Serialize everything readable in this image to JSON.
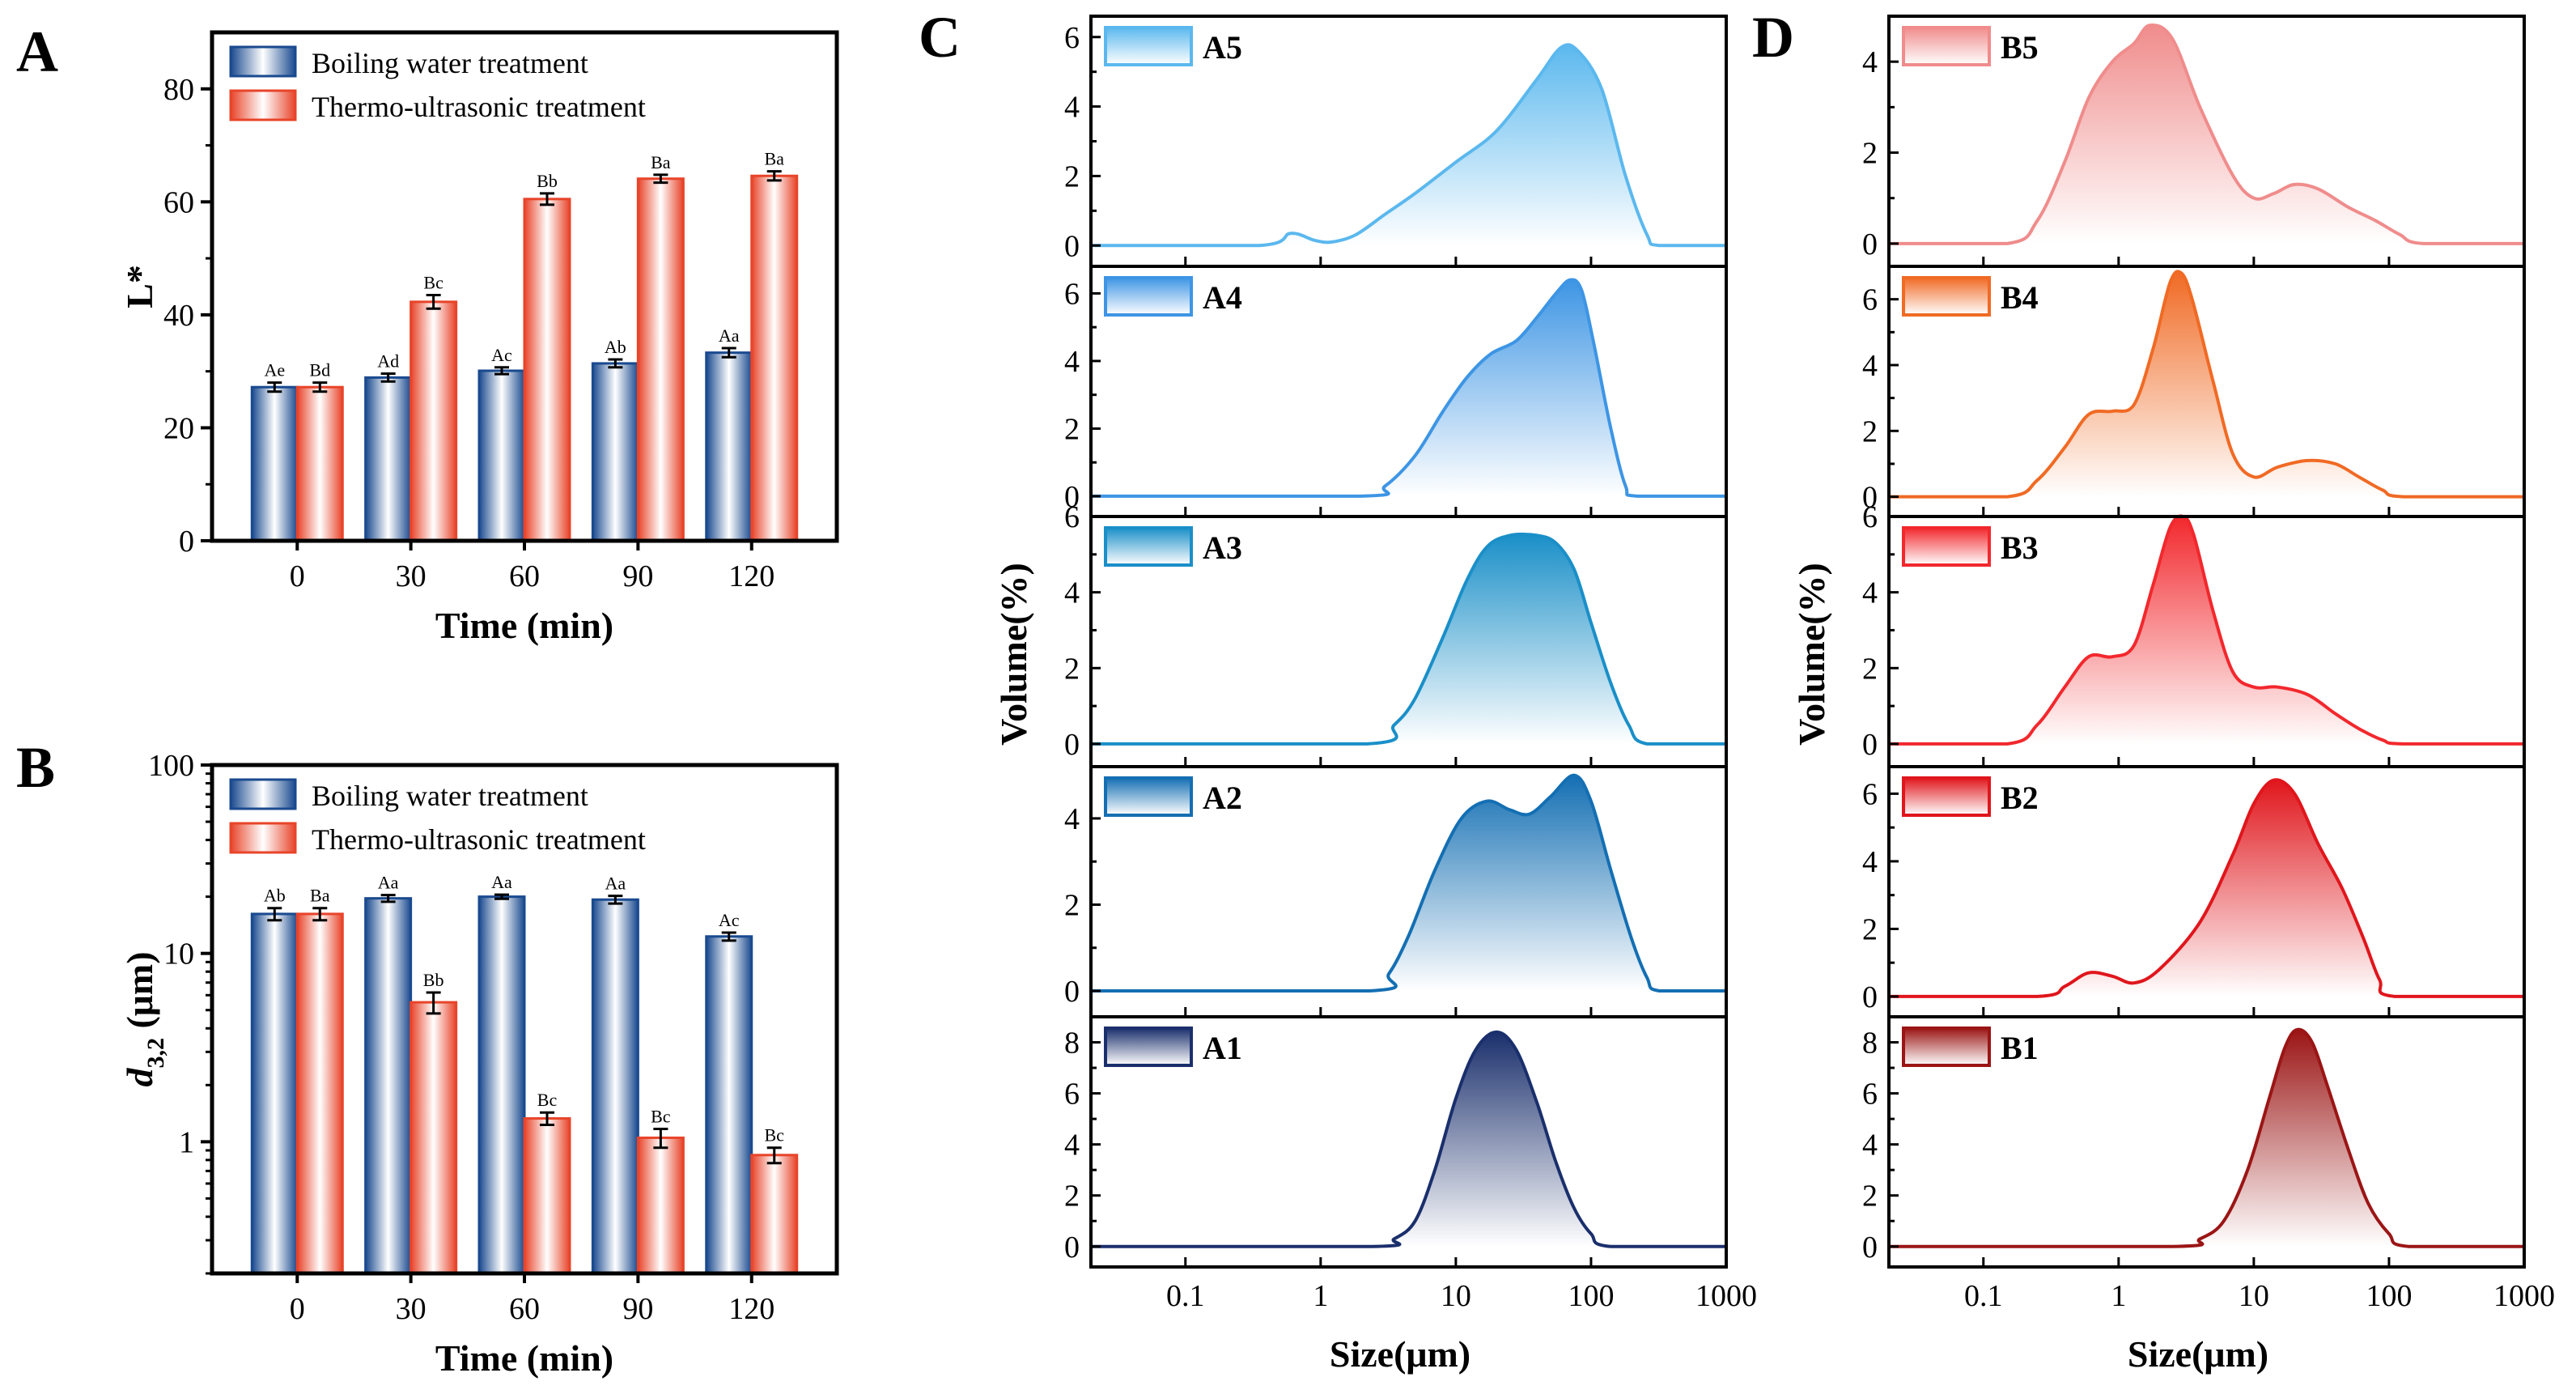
{
  "panels": {
    "A": {
      "letter": "A",
      "chart_data": {
        "type": "bar",
        "title": "",
        "xlabel": "Time (min)",
        "ylabel": "L*",
        "ylim": [
          0,
          90
        ],
        "yticks": [
          0,
          20,
          40,
          60,
          80
        ],
        "categories": [
          "0",
          "30",
          "60",
          "90",
          "120"
        ],
        "series": [
          {
            "name": "Boiling water treatment",
            "color": "#1a4a8f",
            "values": [
              27.2,
              28.9,
              30.1,
              31.4,
              33.3
            ],
            "errors": [
              0.8,
              0.7,
              0.6,
              0.7,
              0.8
            ],
            "labels": [
              "Ae",
              "Ad",
              "Ac",
              "Ab",
              "Aa"
            ]
          },
          {
            "name": "Thermo-ultrasonic treatment",
            "color": "#e8442a",
            "values": [
              27.2,
              42.3,
              60.5,
              64.1,
              64.6
            ],
            "errors": [
              0.8,
              1.2,
              1.0,
              0.7,
              0.8
            ],
            "labels": [
              "Bd",
              "Bc",
              "Bb",
              "Ba",
              "Ba"
            ]
          }
        ]
      }
    },
    "B": {
      "letter": "B",
      "chart_data": {
        "type": "bar",
        "title": "",
        "xlabel": "Time (min)",
        "ylabel_main": "d",
        "ylabel_sub": "3,2",
        "ylabel_unit": " (μm)",
        "yscale": "log",
        "ylim": [
          0.2,
          100
        ],
        "yticks": [
          1,
          10,
          100
        ],
        "ytick_labels": [
          "1",
          "10",
          "100"
        ],
        "categories": [
          "0",
          "30",
          "60",
          "90",
          "120"
        ],
        "series": [
          {
            "name": "Boiling water treatment",
            "color": "#1a4a8f",
            "values": [
              16.2,
              19.6,
              20.0,
              19.3,
              12.3
            ],
            "errors": [
              1.2,
              0.8,
              0.5,
              0.9,
              0.6
            ],
            "labels": [
              "Ab",
              "Aa",
              "Aa",
              "Aa",
              "Ac"
            ]
          },
          {
            "name": "Thermo-ultrasonic treatment",
            "color": "#e8442a",
            "values": [
              16.2,
              5.5,
              1.33,
              1.05,
              0.85
            ],
            "errors": [
              1.2,
              0.7,
              0.1,
              0.12,
              0.08
            ],
            "labels": [
              "Ba",
              "Bb",
              "Bc",
              "Bc",
              "Bc"
            ]
          }
        ]
      }
    },
    "C": {
      "letter": "C",
      "ylabel": "Volume(%)",
      "xlabel": "Size(μm)",
      "xtick_labels": [
        "0.1",
        "1",
        "10",
        "100",
        "1000"
      ],
      "chart_data": {
        "type": "area",
        "xscale": "log",
        "xlim": [
          0.02,
          1000
        ],
        "subplots": [
          {
            "label": "A5",
            "color": "#5bb8ee",
            "ylim": [
              -0.6,
              6.6
            ],
            "yticks": [
              0,
              2,
              4,
              6
            ],
            "points": [
              [
                0.02,
                0
              ],
              [
                0.35,
                0
              ],
              [
                0.6,
                0.35
              ],
              [
                0.9,
                0.15
              ],
              [
                1.2,
                0.1
              ],
              [
                1.8,
                0.3
              ],
              [
                3,
                0.9
              ],
              [
                5,
                1.5
              ],
              [
                10,
                2.4
              ],
              [
                20,
                3.3
              ],
              [
                40,
                4.8
              ],
              [
                60,
                5.7
              ],
              [
                80,
                5.6
              ],
              [
                120,
                4.5
              ],
              [
                180,
                2.0
              ],
              [
                260,
                0.3
              ],
              [
                320,
                0
              ],
              [
                1000,
                0
              ]
            ]
          },
          {
            "label": "A4",
            "color": "#3d95e4",
            "ylim": [
              -0.6,
              6.8
            ],
            "yticks": [
              0,
              2,
              4,
              6
            ],
            "points": [
              [
                0.02,
                0
              ],
              [
                2,
                0
              ],
              [
                3,
                0.3
              ],
              [
                5,
                1.2
              ],
              [
                8,
                2.5
              ],
              [
                12,
                3.5
              ],
              [
                18,
                4.2
              ],
              [
                28,
                4.6
              ],
              [
                40,
                5.3
              ],
              [
                55,
                6.0
              ],
              [
                70,
                6.4
              ],
              [
                85,
                6.1
              ],
              [
                105,
                4.5
              ],
              [
                140,
                2.0
              ],
              [
                180,
                0.3
              ],
              [
                220,
                0
              ],
              [
                1000,
                0
              ]
            ]
          },
          {
            "label": "A3",
            "color": "#1a8fc8",
            "ylim": [
              -0.6,
              6.0
            ],
            "yticks": [
              0,
              2,
              4,
              6
            ],
            "points": [
              [
                0.02,
                0
              ],
              [
                2.2,
                0
              ],
              [
                3.5,
                0.5
              ],
              [
                5,
                1.2
              ],
              [
                8,
                2.8
              ],
              [
                12,
                4.3
              ],
              [
                17,
                5.2
              ],
              [
                25,
                5.5
              ],
              [
                40,
                5.5
              ],
              [
                55,
                5.3
              ],
              [
                75,
                4.6
              ],
              [
                100,
                3.2
              ],
              [
                140,
                1.6
              ],
              [
                190,
                0.5
              ],
              [
                260,
                0
              ],
              [
                1000,
                0
              ]
            ]
          },
          {
            "label": "A2",
            "color": "#146fb3",
            "ylim": [
              -0.6,
              5.2
            ],
            "yticks": [
              0,
              2,
              4
            ],
            "points": [
              [
                0.02,
                0
              ],
              [
                2.3,
                0
              ],
              [
                3.2,
                0.4
              ],
              [
                4.5,
                1.3
              ],
              [
                7,
                2.8
              ],
              [
                11,
                4.0
              ],
              [
                17,
                4.4
              ],
              [
                25,
                4.2
              ],
              [
                35,
                4.1
              ],
              [
                50,
                4.5
              ],
              [
                75,
                5.0
              ],
              [
                100,
                4.4
              ],
              [
                140,
                2.8
              ],
              [
                200,
                1.2
              ],
              [
                260,
                0.3
              ],
              [
                320,
                0
              ],
              [
                1000,
                0
              ]
            ]
          },
          {
            "label": "A1",
            "color": "#1a2f6c",
            "ylim": [
              -0.8,
              9.0
            ],
            "yticks": [
              0,
              2,
              4,
              6,
              8
            ],
            "points": [
              [
                0.02,
                0
              ],
              [
                2.4,
                0
              ],
              [
                3.5,
                0.3
              ],
              [
                5,
                1.0
              ],
              [
                7,
                3.0
              ],
              [
                10,
                5.8
              ],
              [
                14,
                7.7
              ],
              [
                20,
                8.4
              ],
              [
                28,
                7.7
              ],
              [
                40,
                5.6
              ],
              [
                55,
                3.3
              ],
              [
                75,
                1.5
              ],
              [
                100,
                0.5
              ],
              [
                140,
                0
              ],
              [
                1000,
                0
              ]
            ]
          }
        ]
      }
    },
    "D": {
      "letter": "D",
      "ylabel": "Volume(%)",
      "xlabel": "Size(μm)",
      "xtick_labels": [
        "0.1",
        "1",
        "10",
        "100",
        "1000"
      ],
      "chart_data": {
        "type": "area",
        "xscale": "log",
        "xlim": [
          0.02,
          1000
        ],
        "subplots": [
          {
            "label": "B5",
            "color": "#f08c8c",
            "ylim": [
              -0.5,
              5.0
            ],
            "yticks": [
              0,
              2,
              4
            ],
            "points": [
              [
                0.02,
                0
              ],
              [
                0.15,
                0
              ],
              [
                0.25,
                0.5
              ],
              [
                0.4,
                1.8
              ],
              [
                0.6,
                3.2
              ],
              [
                0.9,
                4.0
              ],
              [
                1.3,
                4.4
              ],
              [
                1.7,
                4.8
              ],
              [
                2.5,
                4.5
              ],
              [
                4,
                3.0
              ],
              [
                7,
                1.5
              ],
              [
                10,
                1.0
              ],
              [
                14,
                1.1
              ],
              [
                20,
                1.3
              ],
              [
                30,
                1.2
              ],
              [
                50,
                0.8
              ],
              [
                80,
                0.5
              ],
              [
                120,
                0.2
              ],
              [
                180,
                0
              ],
              [
                1000,
                0
              ]
            ]
          },
          {
            "label": "B4",
            "color": "#f06a24",
            "ylim": [
              -0.6,
              7.0
            ],
            "yticks": [
              0,
              2,
              4,
              6
            ],
            "points": [
              [
                0.02,
                0
              ],
              [
                0.15,
                0
              ],
              [
                0.25,
                0.5
              ],
              [
                0.4,
                1.5
              ],
              [
                0.6,
                2.5
              ],
              [
                0.9,
                2.6
              ],
              [
                1.3,
                2.8
              ],
              [
                1.8,
                4.5
              ],
              [
                2.4,
                6.5
              ],
              [
                2.9,
                6.8
              ],
              [
                3.5,
                6.0
              ],
              [
                5,
                3.5
              ],
              [
                7,
                1.3
              ],
              [
                10,
                0.6
              ],
              [
                15,
                0.9
              ],
              [
                25,
                1.1
              ],
              [
                40,
                1.0
              ],
              [
                60,
                0.6
              ],
              [
                90,
                0.2
              ],
              [
                130,
                0
              ],
              [
                1000,
                0
              ]
            ]
          },
          {
            "label": "B3",
            "color": "#f2282d",
            "ylim": [
              -0.6,
              6.0
            ],
            "yticks": [
              0,
              2,
              4,
              6
            ],
            "points": [
              [
                0.02,
                0
              ],
              [
                0.15,
                0
              ],
              [
                0.25,
                0.5
              ],
              [
                0.4,
                1.5
              ],
              [
                0.6,
                2.3
              ],
              [
                0.9,
                2.3
              ],
              [
                1.3,
                2.6
              ],
              [
                1.8,
                4.2
              ],
              [
                2.4,
                5.7
              ],
              [
                3,
                6.0
              ],
              [
                3.6,
                5.5
              ],
              [
                5,
                3.5
              ],
              [
                7,
                1.9
              ],
              [
                10,
                1.5
              ],
              [
                15,
                1.5
              ],
              [
                25,
                1.3
              ],
              [
                40,
                0.8
              ],
              [
                60,
                0.4
              ],
              [
                90,
                0.1
              ],
              [
                130,
                0
              ],
              [
                1000,
                0
              ]
            ]
          },
          {
            "label": "B2",
            "color": "#e0161c",
            "ylim": [
              -0.6,
              6.8
            ],
            "yticks": [
              0,
              2,
              4,
              6
            ],
            "points": [
              [
                0.02,
                0
              ],
              [
                0.25,
                0
              ],
              [
                0.4,
                0.3
              ],
              [
                0.6,
                0.7
              ],
              [
                0.9,
                0.6
              ],
              [
                1.3,
                0.4
              ],
              [
                2,
                0.8
              ],
              [
                4,
                2.2
              ],
              [
                7,
                4.2
              ],
              [
                10,
                5.7
              ],
              [
                14,
                6.4
              ],
              [
                20,
                6.0
              ],
              [
                30,
                4.5
              ],
              [
                45,
                3.2
              ],
              [
                65,
                1.7
              ],
              [
                85,
                0.5
              ],
              [
                110,
                0
              ],
              [
                1000,
                0
              ]
            ]
          },
          {
            "label": "B1",
            "color": "#9b1515",
            "ylim": [
              -0.8,
              9.0
            ],
            "yticks": [
              0,
              2,
              4,
              6,
              8
            ],
            "points": [
              [
                0.02,
                0
              ],
              [
                2.5,
                0
              ],
              [
                4,
                0.3
              ],
              [
                6,
                1.0
              ],
              [
                9,
                3.0
              ],
              [
                13,
                5.8
              ],
              [
                17,
                7.8
              ],
              [
                21,
                8.5
              ],
              [
                27,
                8.0
              ],
              [
                35,
                6.3
              ],
              [
                50,
                3.8
              ],
              [
                70,
                1.7
              ],
              [
                100,
                0.5
              ],
              [
                140,
                0
              ],
              [
                1000,
                0
              ]
            ]
          }
        ]
      }
    }
  }
}
